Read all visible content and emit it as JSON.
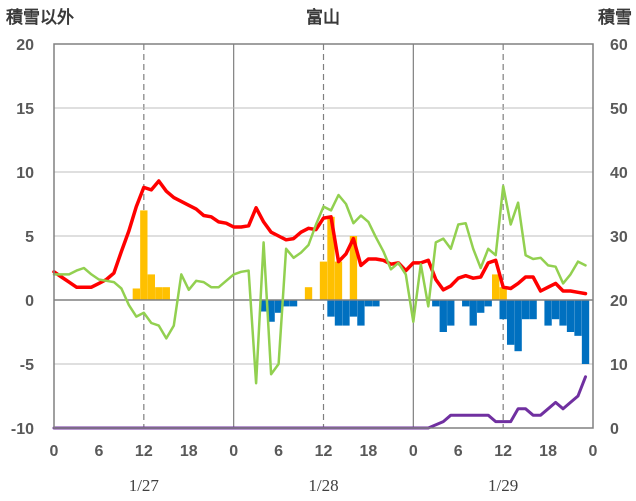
{
  "chart_data": {
    "type": "combo",
    "title": "富山",
    "left_axis_label": "積雪以外",
    "right_axis_label": "積雪",
    "left_ylim": [
      -10,
      20
    ],
    "left_ticks": [
      "20",
      "15",
      "10",
      "5",
      "0",
      "-5",
      "-10"
    ],
    "right_ylim": [
      0,
      60
    ],
    "right_ticks": [
      "60",
      "50",
      "40",
      "30",
      "20",
      "10",
      "0"
    ],
    "x_range_hours": [
      0,
      72
    ],
    "x_tick_labels": [
      "0",
      "6",
      "12",
      "18",
      "0",
      "6",
      "12",
      "18",
      "0",
      "6",
      "12",
      "18",
      "0"
    ],
    "date_labels": [
      "1/27",
      "1/28",
      "1/29"
    ],
    "grid": "dashed vertical at 12h, solid vertical at day boundaries",
    "colors": {
      "temperature": "#ff0000",
      "series_green": "#92d050",
      "precipitation": "#ffc000",
      "snow_change": "#0070c0",
      "snow_depth": "#7030a0"
    },
    "series": [
      {
        "key": "temperature",
        "color": "#ff0000",
        "axis": "left",
        "kind": "line",
        "x": [
          0,
          1,
          2,
          3,
          4,
          5,
          6,
          7,
          8,
          9,
          10,
          11,
          12,
          13,
          14,
          15,
          16,
          17,
          18,
          19,
          20,
          21,
          22,
          23,
          24,
          25,
          26,
          27,
          28,
          29,
          30,
          31,
          32,
          33,
          34,
          35,
          36,
          37,
          38,
          39,
          40,
          41,
          42,
          43,
          44,
          45,
          46,
          47,
          48,
          49,
          50,
          51,
          52,
          53,
          54,
          55,
          56,
          57,
          58,
          59,
          60,
          61,
          62,
          63,
          64,
          65,
          66,
          67,
          68,
          69,
          70,
          71
        ],
        "y": [
          2.2,
          1.8,
          1.4,
          1.0,
          1.0,
          1.0,
          1.3,
          1.6,
          2.1,
          3.8,
          5.4,
          7.3,
          8.8,
          8.6,
          9.3,
          8.5,
          8.0,
          7.7,
          7.4,
          7.1,
          6.6,
          6.5,
          6.1,
          6.0,
          5.7,
          5.7,
          5.8,
          7.2,
          6.1,
          5.3,
          5.0,
          4.7,
          4.8,
          5.3,
          5.6,
          5.5,
          6.4,
          6.5,
          3.0,
          3.6,
          4.8,
          2.7,
          3.2,
          3.2,
          3.1,
          2.8,
          2.9,
          2.3,
          2.9,
          2.9,
          3.1,
          1.6,
          0.8,
          1.1,
          1.7,
          1.9,
          1.7,
          1.8,
          2.9,
          3.1,
          1.0,
          0.9,
          1.3,
          1.8,
          1.8,
          0.7,
          1.0,
          1.3,
          0.7,
          0.7,
          0.6,
          0.5
        ]
      },
      {
        "key": "series_green",
        "color": "#92d050",
        "axis": "left",
        "kind": "line",
        "x": [
          0,
          1,
          2,
          3,
          4,
          5,
          6,
          7,
          8,
          9,
          10,
          11,
          12,
          13,
          14,
          15,
          16,
          17,
          18,
          19,
          20,
          21,
          22,
          23,
          24,
          25,
          26,
          27,
          28,
          29,
          30,
          31,
          32,
          33,
          34,
          35,
          36,
          37,
          38,
          39,
          40,
          41,
          42,
          43,
          44,
          45,
          46,
          47,
          48,
          49,
          50,
          51,
          52,
          53,
          54,
          55,
          56,
          57,
          58,
          59,
          60,
          61,
          62,
          63,
          64,
          65,
          66,
          67,
          68,
          69,
          70,
          71
        ],
        "y": [
          2.0,
          2.0,
          2.0,
          2.3,
          2.5,
          2.0,
          1.6,
          1.5,
          1.4,
          0.9,
          -0.4,
          -1.3,
          -1.0,
          -1.8,
          -2.0,
          -3.0,
          -2.0,
          2.0,
          0.8,
          1.5,
          1.4,
          1.0,
          1.0,
          1.5,
          2.0,
          2.2,
          2.3,
          -6.5,
          4.5,
          -5.8,
          -5.0,
          4.0,
          3.3,
          3.7,
          4.3,
          5.9,
          7.3,
          7.0,
          8.2,
          7.5,
          6.0,
          6.6,
          6.1,
          4.9,
          3.8,
          2.4,
          2.9,
          2.0,
          -1.7,
          2.8,
          -0.5,
          4.5,
          4.8,
          4.0,
          5.9,
          6.0,
          4.0,
          2.5,
          4.0,
          3.5,
          8.9,
          5.9,
          7.6,
          3.5,
          3.2,
          3.3,
          2.7,
          2.6,
          1.3,
          2.0,
          3.0,
          2.7
        ]
      },
      {
        "key": "precipitation",
        "color": "#ffc000",
        "axis": "left",
        "kind": "bar",
        "x": [
          11,
          12,
          13,
          14,
          15,
          34,
          36,
          37,
          38,
          40,
          59,
          60
        ],
        "y": [
          0.9,
          7.0,
          2.0,
          1.0,
          1.0,
          1.0,
          3.0,
          6.5,
          3.0,
          5.0,
          2.0,
          1.0
        ]
      },
      {
        "key": "snow_change",
        "color": "#0070c0",
        "axis": "left",
        "kind": "bar",
        "x": [
          28,
          29,
          30,
          31,
          32,
          37,
          38,
          39,
          40,
          41,
          42,
          43,
          51,
          52,
          53,
          55,
          56,
          57,
          58,
          60,
          61,
          62,
          63,
          64,
          66,
          67,
          68,
          69,
          70,
          71
        ],
        "y": [
          -0.9,
          -1.7,
          -1.0,
          -0.5,
          -0.5,
          -1.3,
          -2.0,
          -2.0,
          -1.3,
          -2.0,
          -0.5,
          -0.5,
          -0.5,
          -2.5,
          -2.0,
          -0.5,
          -2.0,
          -1.0,
          -0.5,
          -1.5,
          -3.5,
          -4.0,
          -1.5,
          -1.5,
          -2.0,
          -1.5,
          -2.0,
          -2.5,
          -2.8,
          -5.0
        ]
      },
      {
        "key": "snow_depth",
        "color": "#7030a0",
        "axis": "right",
        "kind": "line",
        "x": [
          0,
          10,
          20,
          30,
          40,
          50,
          52,
          53,
          54,
          55,
          56,
          57,
          58,
          59,
          60,
          61,
          62,
          63,
          64,
          65,
          66,
          67,
          68,
          69,
          70,
          71
        ],
        "y": [
          0,
          0,
          0,
          0,
          0,
          0,
          1,
          2,
          2,
          2,
          2,
          2,
          2,
          1,
          1,
          1,
          3,
          3,
          2,
          2,
          3,
          4,
          3,
          4,
          5,
          8
        ]
      }
    ]
  }
}
